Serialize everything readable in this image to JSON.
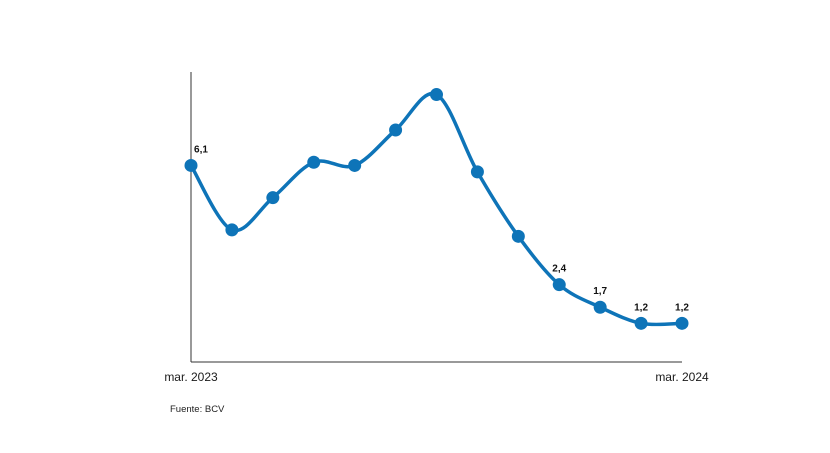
{
  "chart_data": {
    "type": "line",
    "title": "",
    "xlabel": "",
    "ylabel": "",
    "x_tick_labels": [
      "mar. 2023",
      "mar. 2024"
    ],
    "x": [
      0,
      1,
      2,
      3,
      4,
      5,
      6,
      7,
      8,
      9,
      10,
      11,
      12
    ],
    "values": [
      6.1,
      4.1,
      5.1,
      6.2,
      6.1,
      7.2,
      8.3,
      5.9,
      3.9,
      2.4,
      1.7,
      1.2,
      1.2
    ],
    "data_labels": [
      {
        "index": 0,
        "text": "6,1"
      },
      {
        "index": 9,
        "text": "2,4"
      },
      {
        "index": 10,
        "text": "1,7"
      },
      {
        "index": 11,
        "text": "1,2"
      },
      {
        "index": 12,
        "text": "1,2"
      }
    ],
    "ylim": [
      0,
      9
    ],
    "grid": false,
    "legend": "none",
    "colors": {
      "line": "#0e74b8",
      "axis": "#333333"
    }
  },
  "source": "Fuente: BCV"
}
